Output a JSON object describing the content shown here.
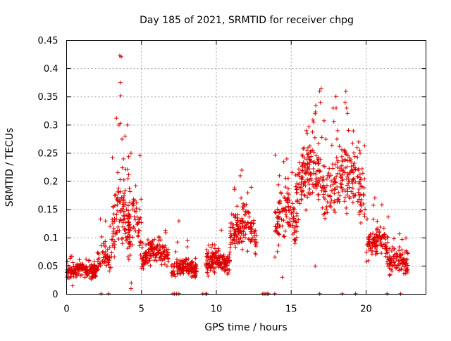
{
  "chart_data": {
    "type": "scatter",
    "title": "Day 185 of 2021, SRMTID for receiver chpg",
    "xlabel": "GPS time / hours",
    "ylabel": "SRMTID / TECUs",
    "xlim": [
      0,
      24
    ],
    "ylim": [
      0,
      0.45
    ],
    "xticks": [
      0,
      5,
      10,
      15,
      20
    ],
    "xtick_labels": [
      "0",
      "5",
      "10",
      "15",
      "20"
    ],
    "yticks": [
      0,
      0.05,
      0.1,
      0.15,
      0.2,
      0.25,
      0.3,
      0.35,
      0.4,
      0.45
    ],
    "ytick_labels": [
      "0",
      "0.05",
      "0.1",
      "0.15",
      "0.2",
      "0.25",
      "0.3",
      "0.35",
      "0.4",
      "0.45"
    ],
    "grid": true,
    "marker": "+",
    "color": "#dd0000",
    "series": [
      {
        "name": "SRMTID",
        "segments": [
          {
            "t0": 0.0,
            "t1": 2.0,
            "center": 0.04,
            "amp": 0.01,
            "spread": 0.012,
            "n": 170
          },
          {
            "t0": 2.0,
            "t1": 3.0,
            "center": 0.06,
            "amp": 0.025,
            "spread": 0.02,
            "n": 60
          },
          {
            "t0": 3.0,
            "t1": 4.2,
            "center": 0.13,
            "amp": 0.06,
            "spread": 0.05,
            "n": 110
          },
          {
            "t0": 4.0,
            "t1": 5.0,
            "center": 0.12,
            "amp": 0.03,
            "spread": 0.045,
            "n": 70
          },
          {
            "t0": 5.0,
            "t1": 6.8,
            "center": 0.07,
            "amp": 0.02,
            "spread": 0.02,
            "n": 150
          },
          {
            "t0": 7.0,
            "t1": 8.7,
            "center": 0.045,
            "amp": 0.01,
            "spread": 0.015,
            "n": 150
          },
          {
            "t0": 9.3,
            "t1": 10.9,
            "center": 0.055,
            "amp": 0.01,
            "spread": 0.017,
            "n": 150
          },
          {
            "t0": 10.9,
            "t1": 12.7,
            "center": 0.11,
            "amp": 0.025,
            "spread": 0.03,
            "n": 150
          },
          {
            "t0": 13.9,
            "t1": 15.4,
            "center": 0.13,
            "amp": 0.045,
            "spread": 0.04,
            "n": 120
          },
          {
            "t0": 15.3,
            "t1": 17.3,
            "center": 0.2,
            "amp": 0.05,
            "spread": 0.045,
            "n": 170
          },
          {
            "t0": 17.3,
            "t1": 20.0,
            "center": 0.19,
            "amp": 0.05,
            "spread": 0.05,
            "n": 190
          },
          {
            "t0": 20.0,
            "t1": 21.5,
            "center": 0.09,
            "amp": 0.02,
            "spread": 0.025,
            "n": 120
          },
          {
            "t0": 21.5,
            "t1": 22.8,
            "center": 0.055,
            "amp": 0.015,
            "spread": 0.02,
            "n": 100
          }
        ],
        "peaks": [
          [
            3.55,
            0.423
          ],
          [
            3.65,
            0.421
          ],
          [
            3.6,
            0.375
          ],
          [
            3.62,
            0.352
          ],
          [
            3.5,
            0.3
          ],
          [
            3.7,
            0.275
          ],
          [
            3.9,
            0.28
          ],
          [
            4.05,
            0.3
          ],
          [
            3.58,
            0.303
          ],
          [
            4.3,
            0.25
          ],
          [
            4.1,
            0.205
          ],
          [
            3.8,
            0.24
          ],
          [
            16.6,
            0.32
          ],
          [
            16.9,
            0.36
          ],
          [
            17.0,
            0.365
          ],
          [
            16.95,
            0.34
          ],
          [
            16.5,
            0.305
          ],
          [
            18.0,
            0.33
          ],
          [
            18.1,
            0.29
          ],
          [
            18.05,
            0.275
          ],
          [
            18.6,
            0.34
          ],
          [
            18.7,
            0.33
          ],
          [
            18.65,
            0.36
          ],
          [
            19.4,
            0.26
          ],
          [
            19.5,
            0.27
          ],
          [
            19.6,
            0.25
          ],
          [
            16.0,
            0.29
          ],
          [
            17.8,
            0.33
          ],
          [
            14.7,
            0.24
          ],
          [
            14.5,
            0.235
          ],
          [
            4.3,
            0.01
          ],
          [
            4.32,
            0.02
          ],
          [
            14.4,
            0.03
          ],
          [
            16.6,
            0.05
          ],
          [
            0.4,
            0.015
          ],
          [
            7.5,
            0.13
          ],
          [
            11.6,
            0.21
          ],
          [
            11.7,
            0.22
          ],
          [
            12.1,
            0.18
          ],
          [
            2.6,
            0.13
          ]
        ],
        "baseline_points": [
          2.3,
          2.8,
          7.1,
          7.2,
          7.35,
          7.5,
          9.1,
          9.3,
          9.35,
          13.1,
          13.2,
          13.3,
          13.4,
          13.5,
          13.9,
          16.9,
          18.4,
          19.3,
          21.4,
          22.3
        ]
      }
    ]
  }
}
